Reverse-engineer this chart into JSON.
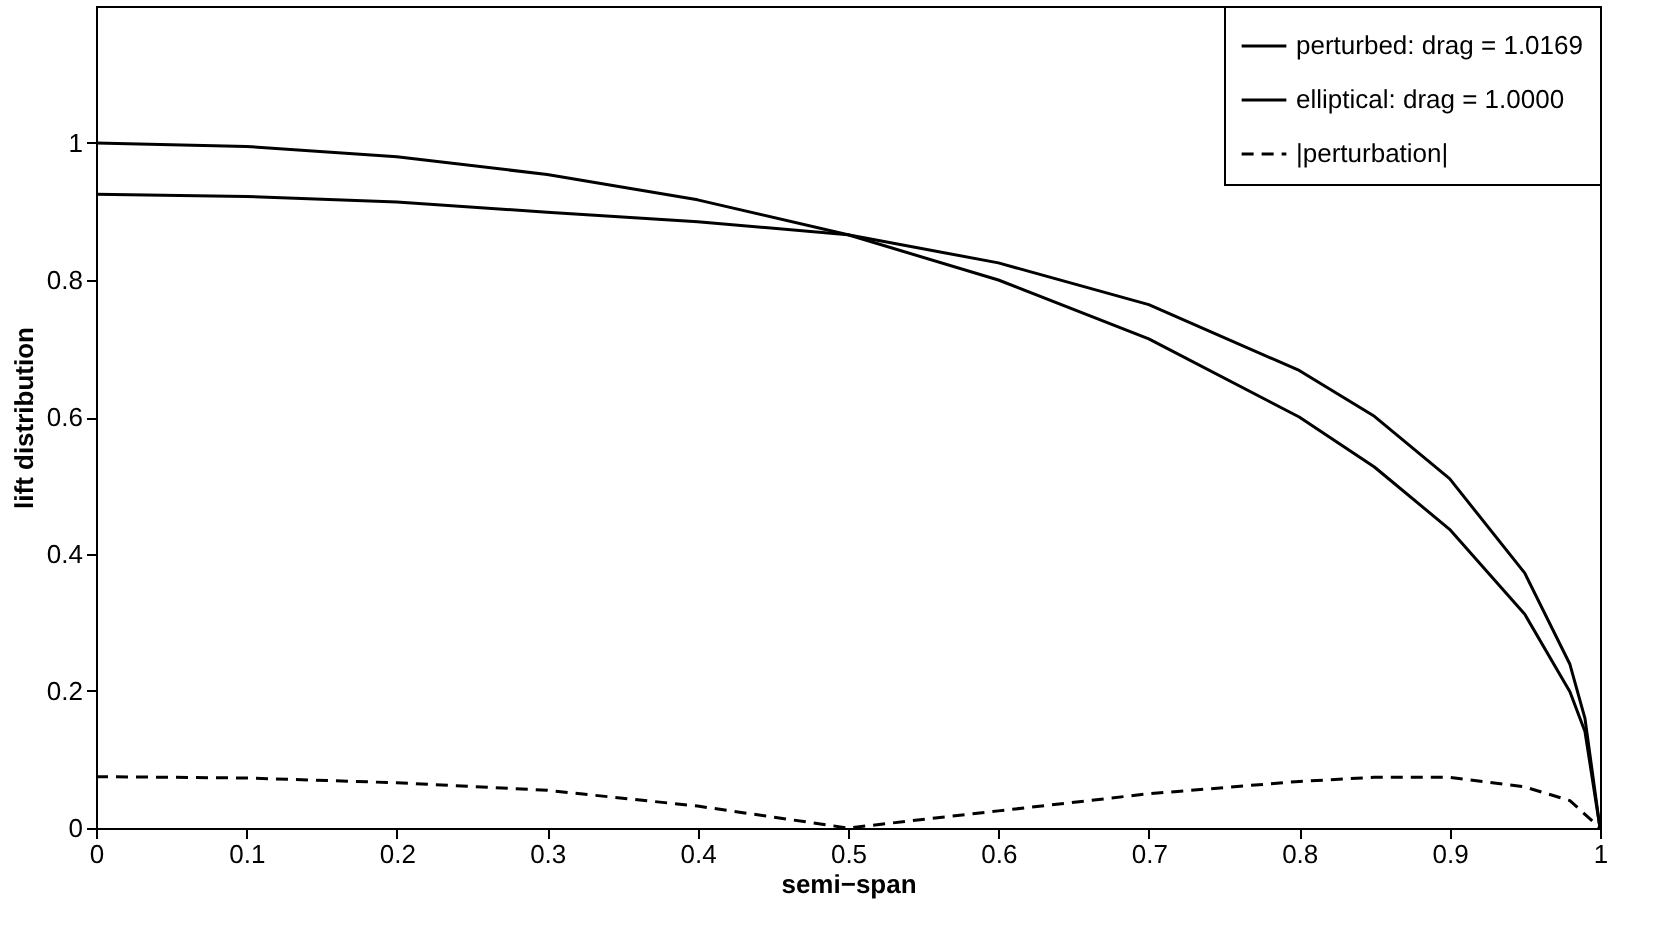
{
  "chart_data": {
    "type": "line",
    "xlabel": "semi−span",
    "ylabel": "lift distribution",
    "x": [
      0,
      0.1,
      0.2,
      0.3,
      0.4,
      0.5,
      0.6,
      0.7,
      0.8,
      0.85,
      0.9,
      0.95,
      0.98,
      0.99,
      1
    ],
    "series": [
      {
        "name": "perturbed: drag = 1.0169",
        "color": "#000000",
        "line_style": "solid",
        "values": [
          0.925,
          0.922,
          0.914,
          0.899,
          0.885,
          0.866,
          0.825,
          0.764,
          0.668,
          0.601,
          0.51,
          0.372,
          0.239,
          0.16,
          0
        ]
      },
      {
        "name": "elliptical: drag = 1.0000",
        "color": "#000000",
        "line_style": "solid",
        "values": [
          1,
          0.995,
          0.98,
          0.954,
          0.917,
          0.866,
          0.8,
          0.714,
          0.6,
          0.527,
          0.436,
          0.312,
          0.199,
          0.141,
          0
        ]
      },
      {
        "name": "|perturbation|",
        "color": "#000000",
        "line_style": "dashed",
        "values": [
          0.075,
          0.073,
          0.066,
          0.055,
          0.032,
          0,
          0.025,
          0.05,
          0.068,
          0.074,
          0.074,
          0.06,
          0.04,
          0.02,
          0
        ]
      }
    ],
    "xlim": [
      0,
      1
    ],
    "xticks": [
      0,
      0.1,
      0.2,
      0.3,
      0.4,
      0.5,
      0.6,
      0.7,
      0.8,
      0.9,
      1
    ],
    "ylim": [
      0,
      1.2
    ],
    "yticks": [
      0,
      0.2,
      0.4,
      0.6,
      0.8,
      1
    ],
    "legend": "top right",
    "grid": false
  }
}
